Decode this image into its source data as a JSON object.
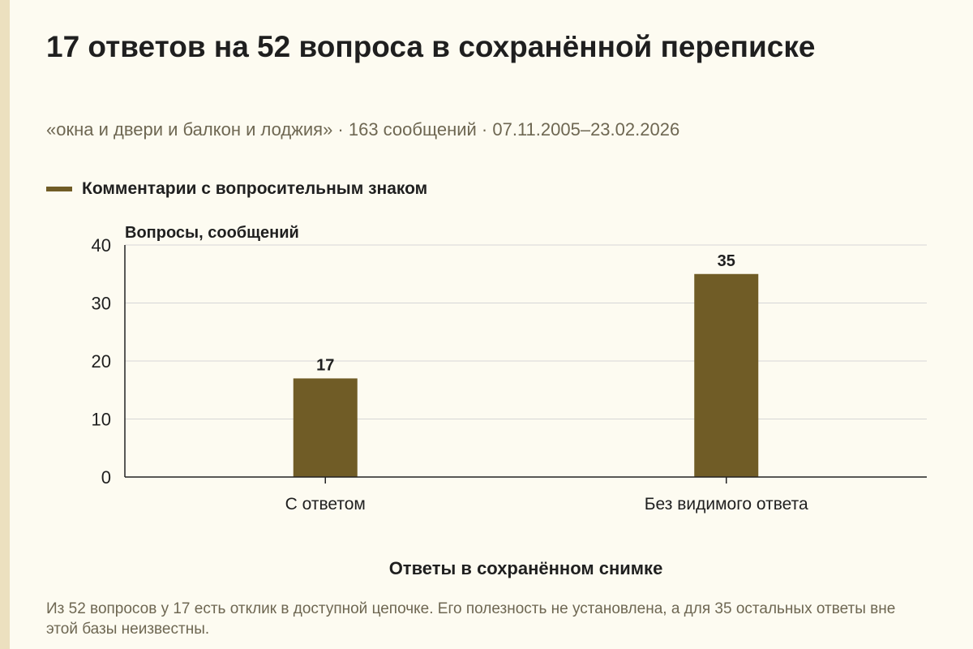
{
  "title": "17 ответов на 52 вопроса в сохранённой переписке",
  "subtitle": "«окна и двери и балкон и лоджия» · 163 сообщений · 07.11.2005–23.02.2026",
  "footnote": "Из 52 вопросов у 17 есть отклик в доступной цепочке. Его полезность не установлена, а для 35 остальных ответы вне этой базы неизвестны.",
  "colors": {
    "bar": "#705c26",
    "grid": "#d6d6d6",
    "axis": "#222222",
    "text": "#1f1f1f"
  },
  "chart_data": {
    "type": "bar",
    "categories": [
      "С ответом",
      "Без видимого ответа"
    ],
    "series": [
      {
        "name": "Комментарии с вопросительным знаком",
        "values": [
          17,
          35
        ]
      }
    ],
    "data_labels": [
      "17",
      "35"
    ],
    "xlabel": "Ответы в сохранённом снимке",
    "ylabel": "Вопросы, сообщений",
    "ylim": [
      0,
      40
    ],
    "yticks": [
      0,
      10,
      20,
      30,
      40
    ],
    "grid": true,
    "legend": "top-left"
  }
}
